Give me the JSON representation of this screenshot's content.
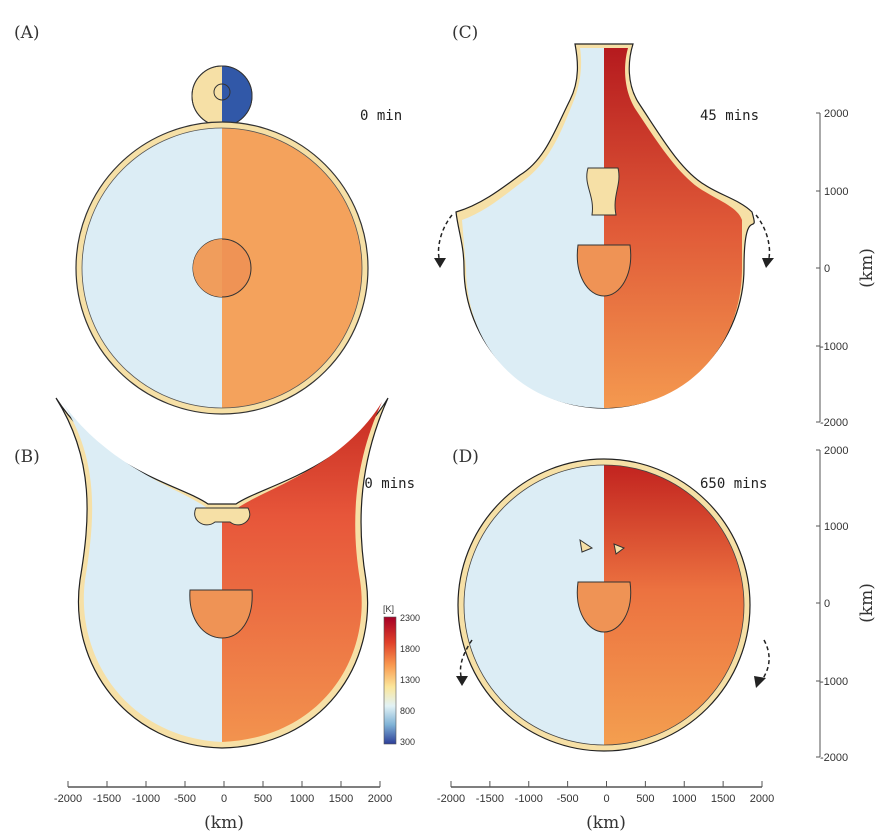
{
  "panels": [
    {
      "label": "(A)",
      "time": "0 min"
    },
    {
      "label": "(B)",
      "time": "10 mins"
    },
    {
      "label": "(C)",
      "time": "45 mins"
    },
    {
      "label": "(D)",
      "time": "650 mins"
    }
  ],
  "x_axis": {
    "ticks": [
      "-2000",
      "-1500",
      "-1000",
      "-500",
      "0",
      "500",
      "1000",
      "1500",
      "2000"
    ],
    "label": "(km)"
  },
  "y_axis": {
    "ticks": [
      "2000",
      "1000",
      "0",
      "-1000",
      "-2000"
    ],
    "label": "(km)"
  },
  "colorbar": {
    "unit": "[K]",
    "ticks": [
      "2300",
      "1800",
      "1300",
      "800",
      "300"
    ]
  },
  "colors": {
    "mantle_left": "#dcedf5",
    "mantle_hot": "#f29a55",
    "hot_red": "#b4141c",
    "crust": "#f6e0a6",
    "impactor_blue": "#3158a8"
  }
}
